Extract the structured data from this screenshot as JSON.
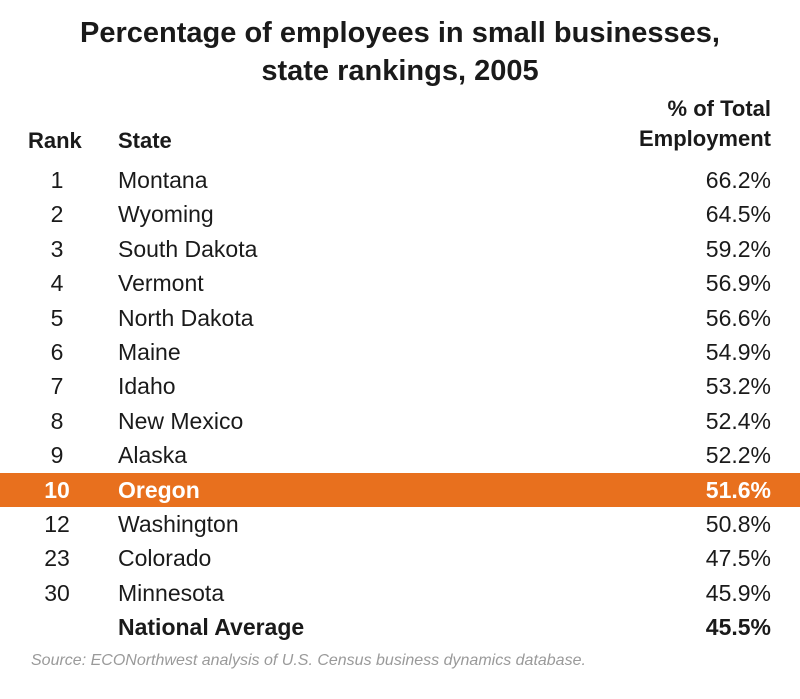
{
  "chart_data": {
    "type": "table",
    "title_lines": [
      "Percentage of employees in small businesses,",
      "state rankings, 2005"
    ],
    "columns": {
      "rank": "Rank",
      "state": "State",
      "pct_lines": [
        "% of Total",
        "Employment"
      ]
    },
    "rows": [
      {
        "rank": "1",
        "state": "Montana",
        "pct": "66.2%",
        "value": 66.2
      },
      {
        "rank": "2",
        "state": "Wyoming",
        "pct": "64.5%",
        "value": 64.5
      },
      {
        "rank": "3",
        "state": "South Dakota",
        "pct": "59.2%",
        "value": 59.2
      },
      {
        "rank": "4",
        "state": "Vermont",
        "pct": "56.9%",
        "value": 56.9
      },
      {
        "rank": "5",
        "state": "North Dakota",
        "pct": "56.6%",
        "value": 56.6
      },
      {
        "rank": "6",
        "state": "Maine",
        "pct": "54.9%",
        "value": 54.9
      },
      {
        "rank": "7",
        "state": "Idaho",
        "pct": "53.2%",
        "value": 53.2
      },
      {
        "rank": "8",
        "state": "New Mexico",
        "pct": "52.4%",
        "value": 52.4
      },
      {
        "rank": "9",
        "state": "Alaska",
        "pct": "52.2%",
        "value": 52.2
      },
      {
        "rank": "10",
        "state": "Oregon",
        "pct": "51.6%",
        "value": 51.6,
        "highlighted": true
      },
      {
        "rank": "12",
        "state": "Washington",
        "pct": "50.8%",
        "value": 50.8
      },
      {
        "rank": "23",
        "state": "Colorado",
        "pct": "47.5%",
        "value": 47.5
      },
      {
        "rank": "30",
        "state": "Minnesota",
        "pct": "45.9%",
        "value": 45.9
      },
      {
        "rank": "",
        "state": "National Average",
        "pct": "45.5%",
        "value": 45.5,
        "bold": true
      }
    ],
    "highlight_color": "#e8701e",
    "source": "Source: ECONorthwest analysis of U.S. Census business dynamics database."
  }
}
